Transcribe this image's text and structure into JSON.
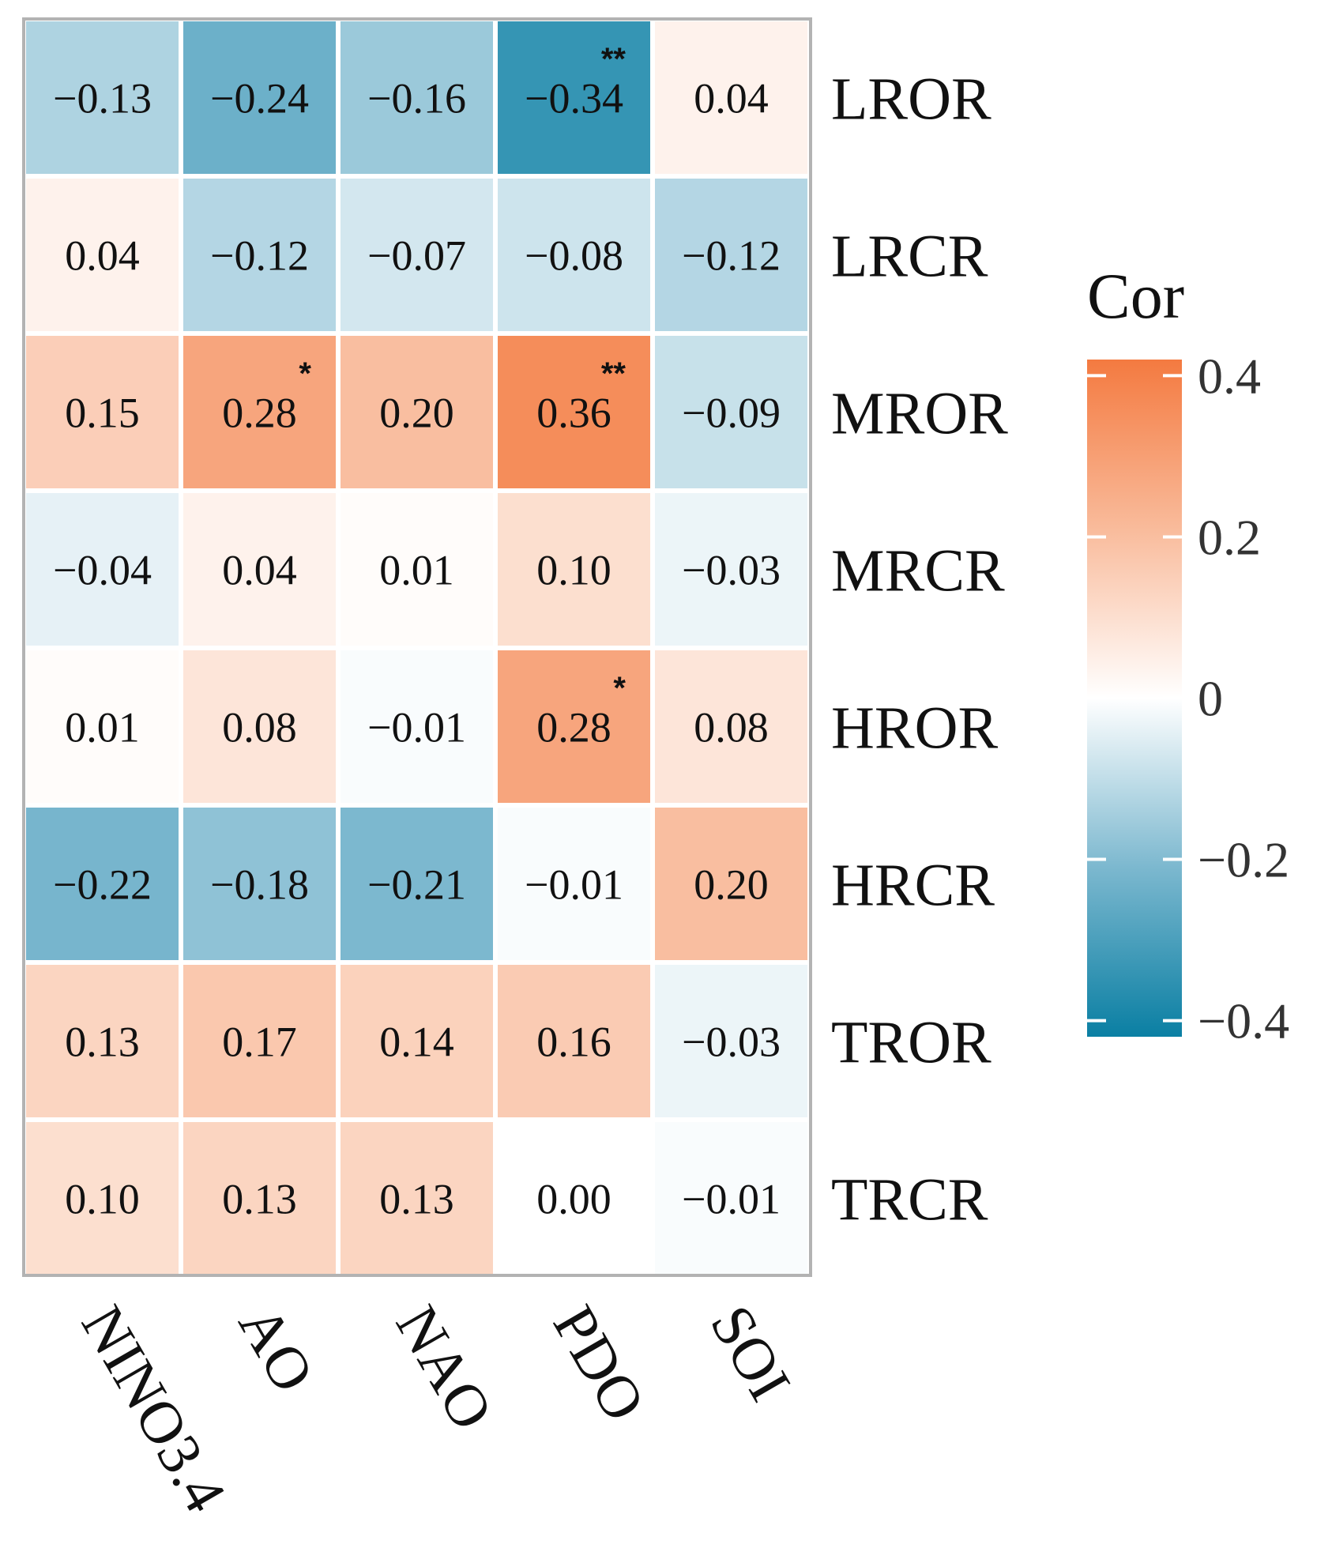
{
  "chart_data": {
    "type": "heatmap",
    "title": "",
    "xlabel": "",
    "ylabel": "",
    "columns": [
      "NINO3.4",
      "AO",
      "NAO",
      "PDO",
      "SOI"
    ],
    "rows": [
      "LROR",
      "LRCR",
      "MROR",
      "MRCR",
      "HROR",
      "HRCR",
      "TROR",
      "TRCR"
    ],
    "values": [
      [
        -0.13,
        -0.24,
        -0.16,
        -0.34,
        0.04
      ],
      [
        0.04,
        -0.12,
        -0.07,
        -0.08,
        -0.12
      ],
      [
        0.15,
        0.28,
        0.2,
        0.36,
        -0.09
      ],
      [
        -0.04,
        0.04,
        0.01,
        0.1,
        -0.03
      ],
      [
        0.01,
        0.08,
        -0.01,
        0.28,
        0.08
      ],
      [
        -0.22,
        -0.18,
        -0.21,
        -0.01,
        0.2
      ],
      [
        0.13,
        0.17,
        0.14,
        0.16,
        -0.03
      ],
      [
        0.1,
        0.13,
        0.13,
        0.0,
        -0.01
      ]
    ],
    "labels": [
      [
        "−0.13",
        "−0.24",
        "−0.16",
        "−0.34",
        "0.04"
      ],
      [
        "0.04",
        "−0.12",
        "−0.07",
        "−0.08",
        "−0.12"
      ],
      [
        "0.15",
        "0.28",
        "0.20",
        "0.36",
        "−0.09"
      ],
      [
        "−0.04",
        "0.04",
        "0.01",
        "0.10",
        "−0.03"
      ],
      [
        "0.01",
        "0.08",
        "−0.01",
        "0.28",
        "0.08"
      ],
      [
        "−0.22",
        "−0.18",
        "−0.21",
        "−0.01",
        "0.20"
      ],
      [
        "0.13",
        "0.17",
        "0.14",
        "0.16",
        "−0.03"
      ],
      [
        "0.10",
        "0.13",
        "0.13",
        "0.00",
        "−0.01"
      ]
    ],
    "significance": [
      [
        "",
        "",
        "",
        "**",
        ""
      ],
      [
        "",
        "",
        "",
        "",
        ""
      ],
      [
        "",
        "*",
        "",
        "**",
        ""
      ],
      [
        "",
        "",
        "",
        "",
        ""
      ],
      [
        "",
        "",
        "",
        "*",
        ""
      ],
      [
        "",
        "",
        "",
        "",
        ""
      ],
      [
        "",
        "",
        "",
        "",
        ""
      ],
      [
        "",
        "",
        "",
        "",
        ""
      ]
    ],
    "legend": {
      "title": "Cor",
      "range": [
        -0.42,
        0.42
      ],
      "ticks": [
        0.4,
        0.2,
        0,
        -0.2,
        -0.4
      ],
      "tick_labels": [
        "0.4",
        "0.2",
        "0",
        "−0.2",
        "−0.4"
      ],
      "placement": "right"
    },
    "colors": {
      "negative": "#0a7fa3",
      "neutral": "#ffffff",
      "positive": "#f47a40",
      "cell_border": "#ffffff",
      "panel_border": "#b3b3b3"
    }
  }
}
